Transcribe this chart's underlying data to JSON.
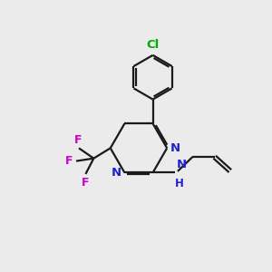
{
  "background_color": "#ebebeb",
  "bond_color": "#1a1a1a",
  "nitrogen_color": "#2222cc",
  "chlorine_color": "#00aa00",
  "fluorine_color": "#cc00cc",
  "line_width": 1.6,
  "fig_size": [
    3.0,
    3.0
  ],
  "dpi": 100,
  "xlim": [
    0,
    10
  ],
  "ylim": [
    0,
    10
  ]
}
